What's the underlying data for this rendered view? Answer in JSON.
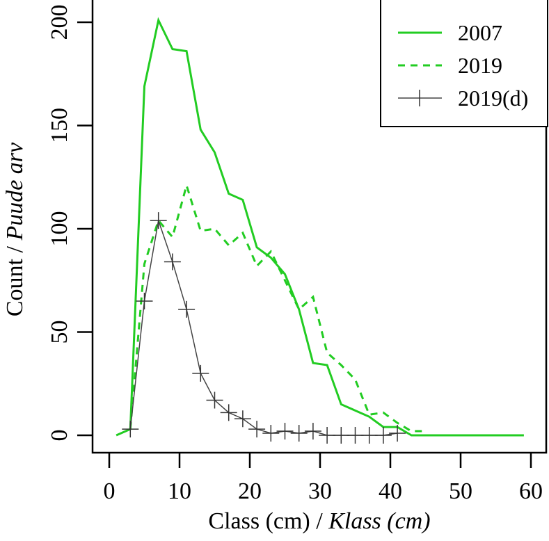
{
  "chart_data": {
    "type": "line",
    "title": "",
    "xlabel": {
      "plain": "Class (cm) / ",
      "italic": "Klass (cm)"
    },
    "ylabel": {
      "plain": "Count / ",
      "italic": "Puude arv"
    },
    "xlim": [
      0,
      60
    ],
    "ylim": [
      0,
      200
    ],
    "xticks": [
      0,
      10,
      20,
      30,
      40,
      50,
      60
    ],
    "yticks": [
      0,
      50,
      100,
      150,
      200
    ],
    "grid": false,
    "legend_position": "top-right",
    "series": [
      {
        "name": "2007",
        "color": "#22cc22",
        "style": "solid",
        "x": [
          1,
          3,
          5,
          7,
          9,
          11,
          13,
          15,
          17,
          19,
          21,
          23,
          25,
          27,
          29,
          31,
          33,
          35,
          37,
          39,
          41,
          43,
          45,
          47,
          49,
          51,
          53,
          55,
          57,
          59
        ],
        "y": [
          0,
          3,
          169,
          201,
          187,
          186,
          148,
          137,
          117,
          114,
          91,
          86,
          78,
          61,
          35,
          34,
          15,
          12,
          9,
          4,
          4,
          0,
          0,
          0,
          0,
          0,
          0,
          0,
          0,
          0
        ]
      },
      {
        "name": "2019",
        "color": "#22cc22",
        "style": "dashed",
        "x": [
          3,
          5,
          7,
          9,
          11,
          13,
          15,
          17,
          19,
          21,
          23,
          25,
          27,
          29,
          31,
          33,
          35,
          37,
          39,
          41,
          43,
          45
        ],
        "y": [
          3,
          83,
          104,
          96,
          121,
          99,
          100,
          92,
          98,
          82,
          89,
          75,
          61,
          67,
          40,
          34,
          27,
          10,
          11,
          6,
          2,
          2
        ]
      },
      {
        "name": "2019(d)",
        "color": "#444444",
        "style": "solid-plus",
        "x": [
          3,
          5,
          7,
          9,
          11,
          13,
          15,
          17,
          19,
          21,
          23,
          25,
          27,
          29,
          31,
          33,
          35,
          37,
          39,
          41
        ],
        "y": [
          3,
          65,
          104,
          84,
          61,
          30,
          17,
          11,
          8,
          3,
          1,
          2,
          1,
          2,
          0,
          0,
          0,
          0,
          0,
          1
        ]
      }
    ]
  }
}
